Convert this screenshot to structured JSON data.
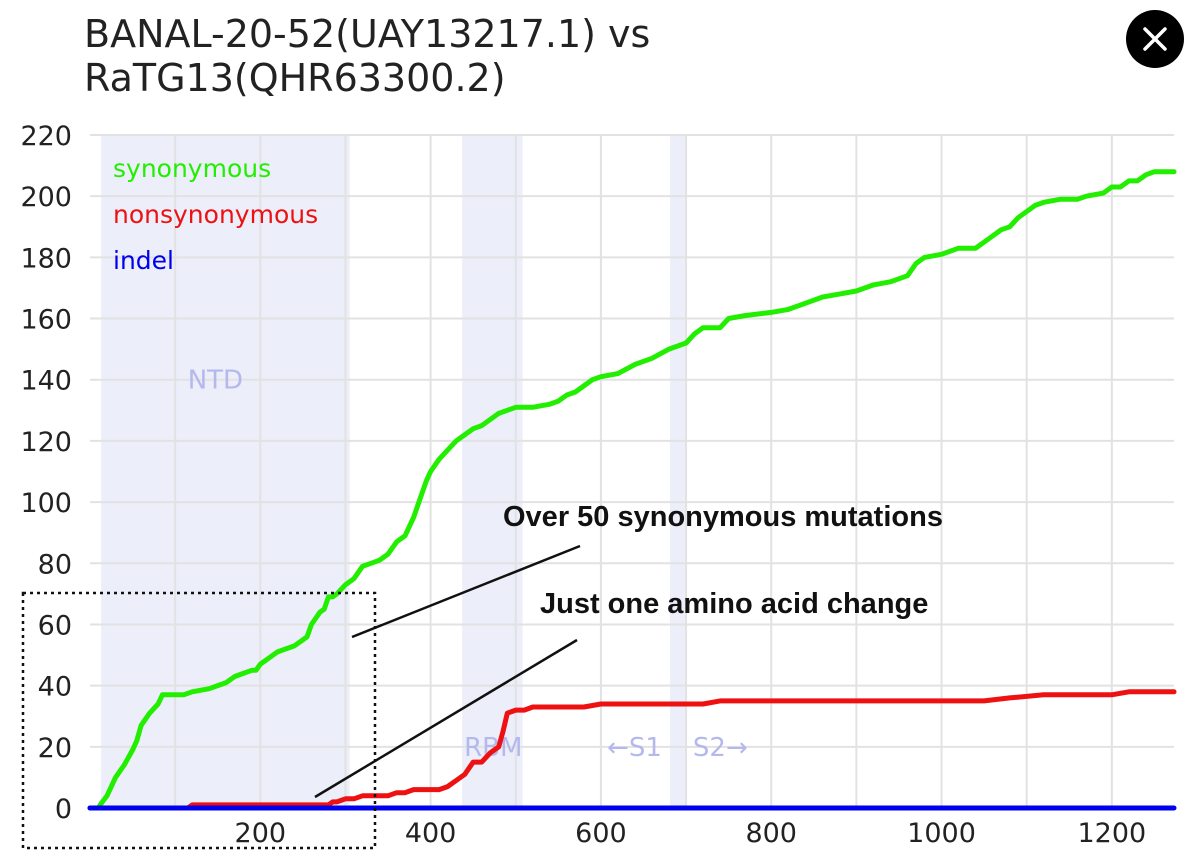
{
  "title_line1": "BANAL-20-52(UAY13217.1) vs",
  "title_line2": "RaTG13(QHR63300.2)",
  "close_button_icon": "close-icon",
  "annotations": {
    "synonymous_note": "Over 50 synonymous mutations",
    "amino_note": "Just one amino acid change"
  },
  "regions": [
    {
      "label": "NTD",
      "start": 13,
      "end": 305
    },
    {
      "label": "RBM",
      "start": 437,
      "end": 508
    },
    {
      "label": "S1/S2",
      "start": 681,
      "end": 701
    }
  ],
  "region_labels": {
    "s1": "←S1",
    "s2": "S2→"
  },
  "chart_data": {
    "type": "line",
    "xlim": [
      0,
      1273
    ],
    "ylim": [
      0,
      220
    ],
    "x_ticks": [
      200,
      400,
      600,
      800,
      1000,
      1200
    ],
    "y_ticks": [
      0,
      20,
      40,
      60,
      80,
      100,
      120,
      140,
      160,
      180,
      200,
      220
    ],
    "grid": true,
    "legend_position": "top-left",
    "series": [
      {
        "name": "synonymous",
        "color": "#22ee00",
        "points": [
          [
            0,
            0
          ],
          [
            10,
            0
          ],
          [
            12,
            1
          ],
          [
            20,
            4
          ],
          [
            30,
            10
          ],
          [
            40,
            14
          ],
          [
            50,
            19
          ],
          [
            55,
            22
          ],
          [
            60,
            27
          ],
          [
            70,
            31
          ],
          [
            80,
            34
          ],
          [
            85,
            37
          ],
          [
            95,
            37
          ],
          [
            100,
            37
          ],
          [
            110,
            37
          ],
          [
            120,
            38
          ],
          [
            140,
            39
          ],
          [
            150,
            40
          ],
          [
            160,
            41
          ],
          [
            170,
            43
          ],
          [
            180,
            44
          ],
          [
            190,
            45
          ],
          [
            195,
            45
          ],
          [
            200,
            47
          ],
          [
            210,
            49
          ],
          [
            220,
            51
          ],
          [
            230,
            52
          ],
          [
            240,
            53
          ],
          [
            250,
            55
          ],
          [
            255,
            56
          ],
          [
            260,
            60
          ],
          [
            270,
            64
          ],
          [
            275,
            65
          ],
          [
            280,
            69
          ],
          [
            285,
            69
          ],
          [
            290,
            70
          ],
          [
            300,
            73
          ],
          [
            310,
            75
          ],
          [
            320,
            79
          ],
          [
            330,
            80
          ],
          [
            340,
            81
          ],
          [
            350,
            83
          ],
          [
            360,
            87
          ],
          [
            370,
            89
          ],
          [
            375,
            92
          ],
          [
            380,
            95
          ],
          [
            390,
            103
          ],
          [
            395,
            107
          ],
          [
            400,
            110
          ],
          [
            410,
            114
          ],
          [
            420,
            117
          ],
          [
            430,
            120
          ],
          [
            440,
            122
          ],
          [
            450,
            124
          ],
          [
            460,
            125
          ],
          [
            470,
            127
          ],
          [
            480,
            129
          ],
          [
            490,
            130
          ],
          [
            500,
            131
          ],
          [
            520,
            131
          ],
          [
            540,
            132
          ],
          [
            550,
            133
          ],
          [
            560,
            135
          ],
          [
            570,
            136
          ],
          [
            580,
            138
          ],
          [
            590,
            140
          ],
          [
            600,
            141
          ],
          [
            620,
            142
          ],
          [
            640,
            145
          ],
          [
            660,
            147
          ],
          [
            680,
            150
          ],
          [
            700,
            152
          ],
          [
            710,
            155
          ],
          [
            720,
            157
          ],
          [
            740,
            157
          ],
          [
            750,
            160
          ],
          [
            770,
            161
          ],
          [
            800,
            162
          ],
          [
            820,
            163
          ],
          [
            840,
            165
          ],
          [
            860,
            167
          ],
          [
            880,
            168
          ],
          [
            900,
            169
          ],
          [
            920,
            171
          ],
          [
            940,
            172
          ],
          [
            960,
            174
          ],
          [
            970,
            178
          ],
          [
            980,
            180
          ],
          [
            1000,
            181
          ],
          [
            1020,
            183
          ],
          [
            1040,
            183
          ],
          [
            1050,
            185
          ],
          [
            1060,
            187
          ],
          [
            1070,
            189
          ],
          [
            1080,
            190
          ],
          [
            1090,
            193
          ],
          [
            1100,
            195
          ],
          [
            1110,
            197
          ],
          [
            1120,
            198
          ],
          [
            1140,
            199
          ],
          [
            1160,
            199
          ],
          [
            1170,
            200
          ],
          [
            1190,
            201
          ],
          [
            1200,
            203
          ],
          [
            1210,
            203
          ],
          [
            1220,
            205
          ],
          [
            1230,
            205
          ],
          [
            1240,
            207
          ],
          [
            1250,
            208
          ],
          [
            1260,
            208
          ],
          [
            1273,
            208
          ]
        ]
      },
      {
        "name": "nonsynonymous",
        "color": "#ee1111",
        "points": [
          [
            0,
            0
          ],
          [
            115,
            0
          ],
          [
            120,
            1
          ],
          [
            280,
            1
          ],
          [
            285,
            2
          ],
          [
            290,
            2
          ],
          [
            300,
            3
          ],
          [
            310,
            3
          ],
          [
            320,
            4
          ],
          [
            340,
            4
          ],
          [
            350,
            4
          ],
          [
            360,
            5
          ],
          [
            370,
            5
          ],
          [
            380,
            6
          ],
          [
            400,
            6
          ],
          [
            410,
            6
          ],
          [
            420,
            7
          ],
          [
            430,
            9
          ],
          [
            440,
            11
          ],
          [
            450,
            15
          ],
          [
            460,
            15
          ],
          [
            470,
            18
          ],
          [
            480,
            20
          ],
          [
            485,
            25
          ],
          [
            490,
            31
          ],
          [
            500,
            32
          ],
          [
            510,
            32
          ],
          [
            520,
            33
          ],
          [
            560,
            33
          ],
          [
            580,
            33
          ],
          [
            600,
            34
          ],
          [
            700,
            34
          ],
          [
            720,
            34
          ],
          [
            740,
            35
          ],
          [
            800,
            35
          ],
          [
            1000,
            35
          ],
          [
            1030,
            35
          ],
          [
            1050,
            35
          ],
          [
            1080,
            36
          ],
          [
            1120,
            37
          ],
          [
            1200,
            37
          ],
          [
            1220,
            38
          ],
          [
            1273,
            38
          ]
        ]
      },
      {
        "name": "indel",
        "color": "#0000ee",
        "points": [
          [
            0,
            0
          ],
          [
            1273,
            0
          ]
        ]
      }
    ]
  }
}
